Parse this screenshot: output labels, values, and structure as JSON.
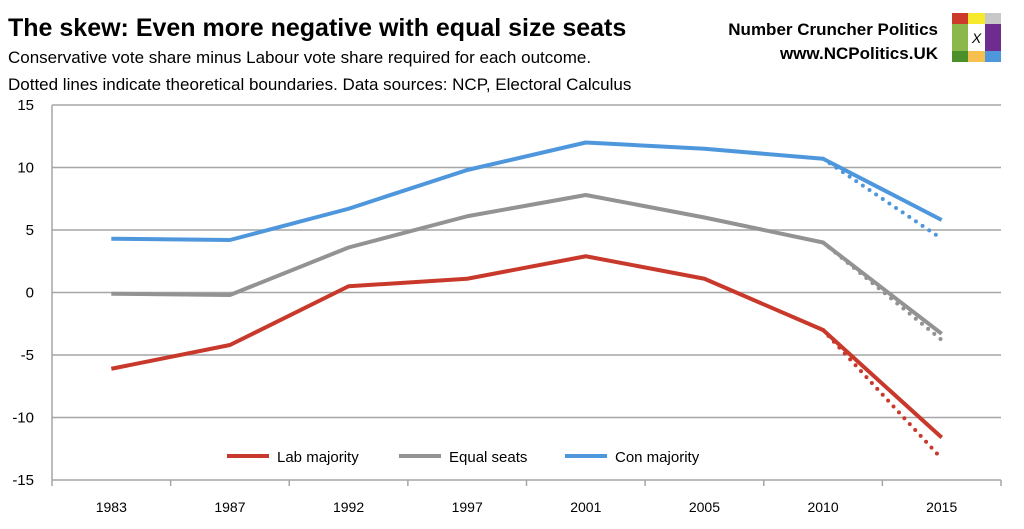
{
  "header": {
    "title": "The skew: Even more negative with equal size seats",
    "subtitle1": "Conservative vote share minus Labour vote share required for each outcome.",
    "subtitle2": "Dotted lines indicate theoretical boundaries. Data sources: NCP, Electoral Calculus",
    "brand": "Number Cruncher Politics",
    "url": "www.NCPolitics.UK",
    "logo_text": "X",
    "logo_colors": [
      "#cc3a2b",
      "#f7ea2c",
      "#c8c8c8",
      "#8ab84a",
      "#ffffff",
      "#6d2c8e",
      "#4a8f2a",
      "#f5c04e",
      "#4f97dc"
    ]
  },
  "chart_data": {
    "type": "line",
    "categories": [
      "1983",
      "1987",
      "1992",
      "1997",
      "2001",
      "2005",
      "2010",
      "2015"
    ],
    "ylim": [
      -15,
      15
    ],
    "yticks": [
      15,
      10,
      5,
      0,
      -5,
      -10,
      -15
    ],
    "grid": true,
    "legend_placement": "bottom-center",
    "series": [
      {
        "name": "Lab majority",
        "color": "#c9392b",
        "values": [
          -6.1,
          -4.2,
          0.5,
          1.1,
          2.9,
          1.1,
          -3.0,
          -11.6
        ],
        "dotted": {
          "from": "2010",
          "to": "2015",
          "values": [
            -3.0,
            -13.3
          ]
        }
      },
      {
        "name": "Equal seats",
        "color": "#939393",
        "values": [
          -0.1,
          -0.2,
          3.6,
          6.1,
          7.8,
          6.0,
          4.0,
          -3.3
        ],
        "dotted": {
          "from": "2010",
          "to": "2015",
          "values": [
            4.0,
            -3.8
          ]
        }
      },
      {
        "name": "Con majority",
        "color": "#4f97dc",
        "values": [
          4.3,
          4.2,
          6.7,
          9.8,
          12.0,
          11.5,
          10.7,
          5.8
        ],
        "dotted": {
          "from": "2010",
          "to": "2015",
          "values": [
            10.7,
            4.3
          ]
        }
      }
    ]
  }
}
